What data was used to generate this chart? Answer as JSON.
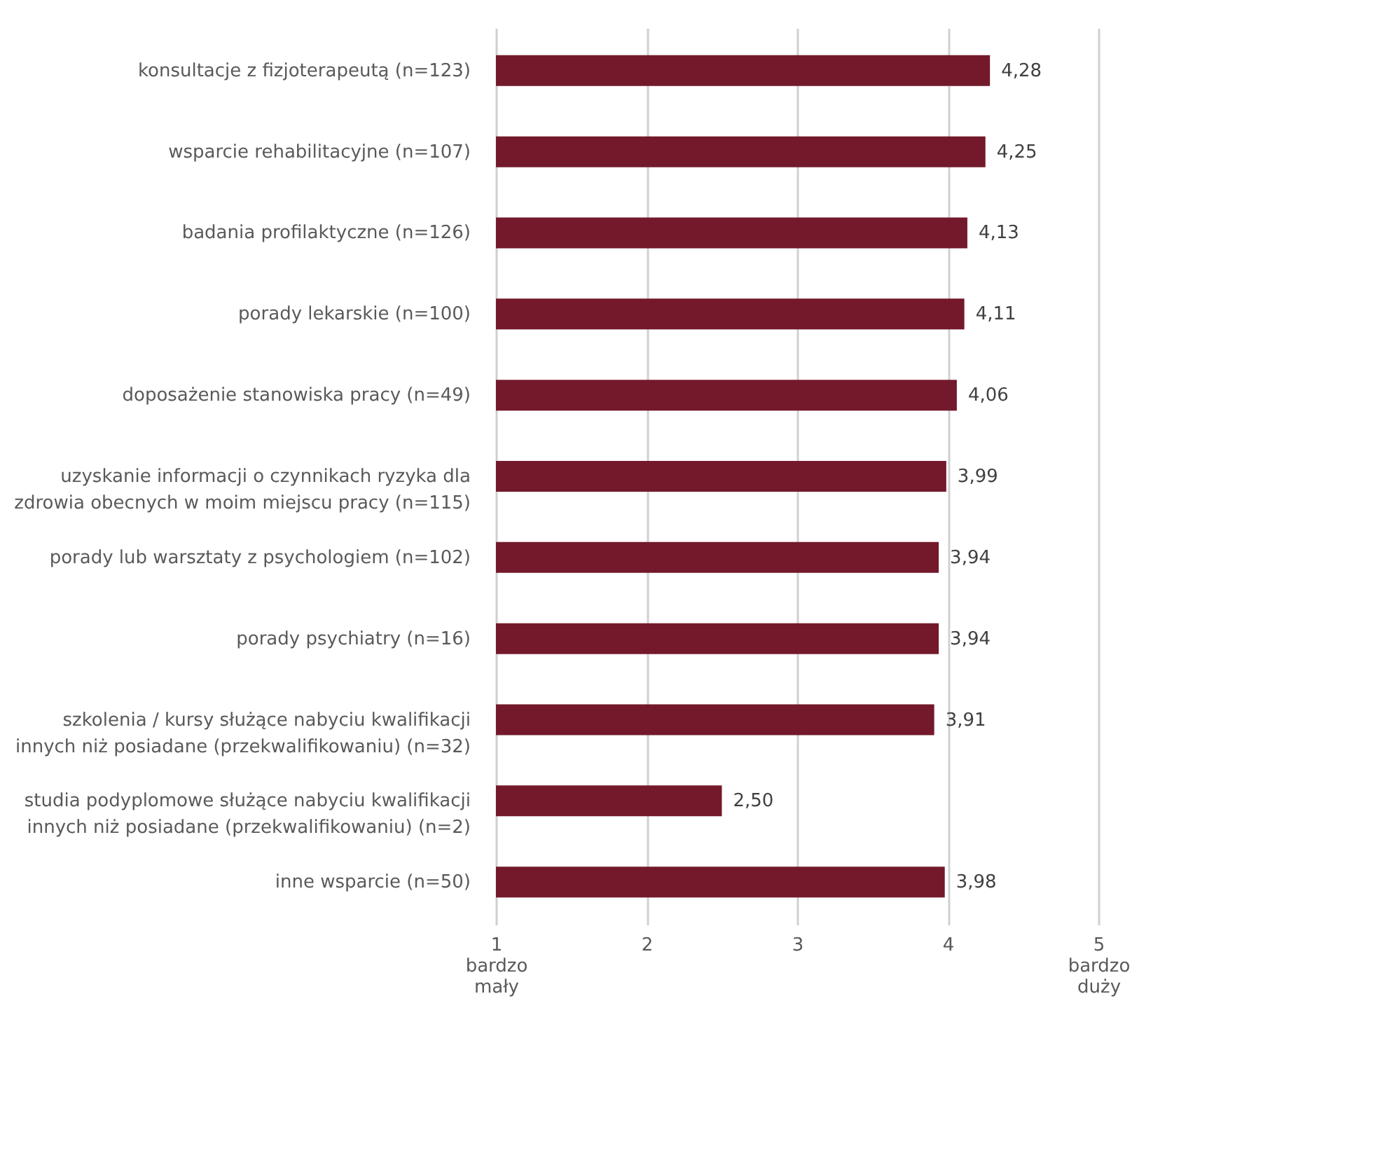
{
  "chart_data": {
    "type": "bar",
    "orientation": "horizontal",
    "categories": [
      "konsultacje z fizjoterapeutą (n=123)",
      "wsparcie rehabilitacyjne (n=107)",
      "badania profilaktyczne (n=126)",
      "porady lekarskie (n=100)",
      "doposażenie stanowiska pracy (n=49)",
      "uzyskanie informacji o czynnikach ryzyka dla zdrowia obecnych w moim miejscu pracy (n=115)",
      "porady lub warsztaty z psychologiem (n=102)",
      "porady psychiatry (n=16)",
      "szkolenia / kursy służące nabyciu kwalifikacji innych niż posiadane (przekwalifikowaniu) (n=32)",
      "studia podyplomowe służące nabyciu kwalifikacji innych niż posiadane (przekwalifikowaniu) (n=2)",
      "inne wsparcie (n=50)"
    ],
    "values": [
      4.28,
      4.25,
      4.13,
      4.11,
      4.06,
      3.99,
      3.94,
      3.94,
      3.91,
      2.5,
      3.98
    ],
    "value_labels": [
      "4,28",
      "4,25",
      "4,13",
      "4,11",
      "4,06",
      "3,99",
      "3,94",
      "3,94",
      "3,91",
      "2,50",
      "3,98"
    ],
    "color": "#73192b",
    "xlim": [
      1,
      5
    ],
    "xticks": [
      {
        "value": 1,
        "label": "1\nbardzo\nmały"
      },
      2,
      3,
      4,
      {
        "value": 5,
        "label": "5\nbardzo\nduży"
      }
    ],
    "grid": "x"
  }
}
